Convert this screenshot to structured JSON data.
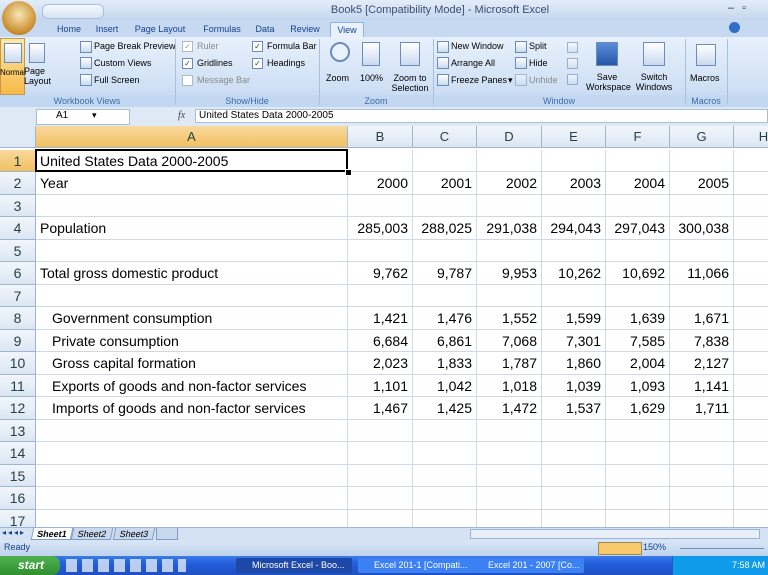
{
  "title_bar": {
    "title": "Book5 [Compatibility Mode] - Microsoft Excel"
  },
  "ribbon": {
    "tabs": [
      "Home",
      "Insert",
      "Page Layout",
      "Formulas",
      "Data",
      "Review",
      "View"
    ],
    "active_tab": 6,
    "workbook_views": {
      "label": "Workbook Views",
      "normal": "Normal",
      "page_layout": "Page Layout",
      "page_break_preview": "Page Break Preview",
      "custom_views": "Custom Views",
      "full_screen": "Full Screen"
    },
    "show_hide": {
      "label": "Show/Hide",
      "options": [
        {
          "text": "Ruler",
          "checked": true,
          "enabled": false
        },
        {
          "text": "Gridlines",
          "checked": true,
          "enabled": true
        },
        {
          "text": "Message Bar",
          "checked": false,
          "enabled": false
        },
        {
          "text": "Formula Bar",
          "checked": true,
          "enabled": true
        },
        {
          "text": "Headings",
          "checked": true,
          "enabled": true
        }
      ]
    },
    "zoom": {
      "label": "Zoom",
      "zoom": "Zoom",
      "hundred": "100%",
      "zoom_to_selection": "Zoom to Selection"
    },
    "window": {
      "label": "Window",
      "new_window": "New Window",
      "arrange_all": "Arrange All",
      "freeze_panes": "Freeze Panes",
      "split": "Split",
      "hide": "Hide",
      "unhide": "Unhide",
      "save_workspace": "Save Workspace",
      "switch_windows": "Switch Windows"
    },
    "macros": {
      "label": "Macros",
      "macros": "Macros"
    }
  },
  "formula_bar": {
    "name_box": "A1",
    "fx": "fx",
    "content": "United States Data 2000-2005"
  },
  "sheet": {
    "columns": [
      "A",
      "B",
      "C",
      "D",
      "E",
      "F",
      "G",
      "H"
    ],
    "selected": [
      0,
      0
    ],
    "rows": [
      {
        "number": 1,
        "cells": [
          "United States Data 2000-2005"
        ]
      },
      {
        "number": 2,
        "cells": [
          "Year",
          "2000",
          "2001",
          "2002",
          "2003",
          "2004",
          "2005"
        ]
      },
      {
        "number": 3
      },
      {
        "number": 4,
        "cells": [
          "Population",
          "285,003",
          "288,025",
          "291,038",
          "294,043",
          "297,043",
          "300,038"
        ]
      },
      {
        "number": 5
      },
      {
        "number": 6,
        "cells": [
          "Total gross domestic product",
          "9,762",
          "9,787",
          "9,953",
          "10,262",
          "10,692",
          "11,066"
        ]
      },
      {
        "number": 7
      },
      {
        "number": 8,
        "indent": true,
        "cells": [
          "Government consumption",
          "1,421",
          "1,476",
          "1,552",
          "1,599",
          "1,639",
          "1,671"
        ]
      },
      {
        "number": 9,
        "indent": true,
        "cells": [
          "Private consumption",
          "6,684",
          "6,861",
          "7,068",
          "7,301",
          "7,585",
          "7,838"
        ]
      },
      {
        "number": 10,
        "indent": true,
        "cells": [
          "Gross capital formation",
          "2,023",
          "1,833",
          "1,787",
          "1,860",
          "2,004",
          "2,127"
        ]
      },
      {
        "number": 11,
        "indent": true,
        "cells": [
          "Exports of goods and non-factor services",
          "1,101",
          "1,042",
          "1,018",
          "1,039",
          "1,093",
          "1,141"
        ]
      },
      {
        "number": 12,
        "indent": true,
        "cells": [
          "Imports of goods and non-factor services",
          "1,467",
          "1,425",
          "1,472",
          "1,537",
          "1,629",
          "1,711"
        ]
      },
      {
        "number": 13
      },
      {
        "number": 14
      },
      {
        "number": 15
      },
      {
        "number": 16
      },
      {
        "number": 17
      }
    ]
  },
  "sheet_tabs": {
    "tabs": [
      "Sheet1",
      "Sheet2",
      "Sheet3"
    ],
    "active": 0
  },
  "status_bar": {
    "status": "Ready",
    "zoom": "150%"
  },
  "taskbar": {
    "start": "start",
    "tasks": [
      "Microsoft Excel - Boo...",
      "Excel 201-1 [Compati...",
      "Excel 201 - 2007 [Co..."
    ],
    "clock": "7:58 AM"
  }
}
